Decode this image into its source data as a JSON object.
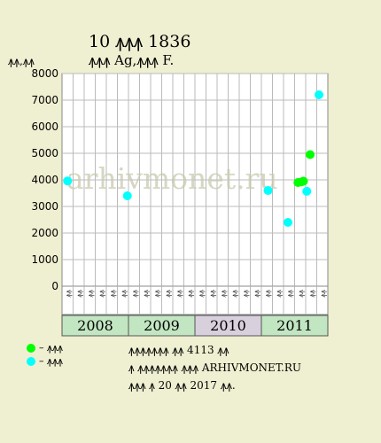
{
  "header": {
    "title": "10 ꙟꙟꙟ 1836",
    "subtitle": "ꙟꙟꙟ Ag,ꙟꙟꙟ F.",
    "ylabel": "ꙟꙟ,ꙟꙟ"
  },
  "watermark": "arhivmonet.ru",
  "chart_data": {
    "type": "scatter",
    "ylim": [
      0,
      8000
    ],
    "yticks": [
      0,
      1000,
      2000,
      3000,
      4000,
      5000,
      6000,
      7000,
      8000
    ],
    "grid": true,
    "x_sublabels": [
      "ꙟꙟ",
      "ꙟꙟ",
      "ꙟꙟ",
      "ꙟꙟ",
      "ꙟꙟ",
      "ꙟꙟ",
      "ꙟꙟ",
      "ꙟꙟ",
      "ꙟꙟ",
      "ꙟꙟ",
      "ꙟꙟ",
      "ꙟꙟ",
      "ꙟꙟ",
      "ꙟꙟ",
      "ꙟꙟ",
      "ꙟꙟ",
      "ꙟꙟ",
      "ꙟꙟ",
      "ꙟꙟ",
      "ꙟꙟ",
      "ꙟꙟ",
      "ꙟꙟ",
      "ꙟꙟ",
      "ꙟꙟ"
    ],
    "years": [
      {
        "label": "2008",
        "color": "#c2e6c2"
      },
      {
        "label": "2009",
        "color": "#c2e6c2"
      },
      {
        "label": "2010",
        "color": "#d8d0dc"
      },
      {
        "label": "2011",
        "color": "#c2e6c2"
      }
    ],
    "series": [
      {
        "name": "ꙟꙟꙟ",
        "color": "#00ff00",
        "points": [
          {
            "x": 21.3,
            "y": 3900
          },
          {
            "x": 21.6,
            "y": 3920
          },
          {
            "x": 21.8,
            "y": 3950
          },
          {
            "x": 22.4,
            "y": 4950
          }
        ]
      },
      {
        "name": "ꙟꙟꙟ",
        "color": "#00ffff",
        "points": [
          {
            "x": 0.5,
            "y": 3960
          },
          {
            "x": 5.9,
            "y": 3400
          },
          {
            "x": 18.6,
            "y": 3600
          },
          {
            "x": 20.4,
            "y": 2400
          },
          {
            "x": 22.1,
            "y": 3570
          },
          {
            "x": 23.2,
            "y": 7200
          }
        ]
      }
    ]
  },
  "legend": [
    {
      "label": "– ꙟꙟꙟ",
      "color": "#00ff00"
    },
    {
      "label": "– ꙟꙟꙟ",
      "color": "#00ffff"
    }
  ],
  "notes": [
    "ꙟꙟꙟꙟꙟꙟꙟ ꙟꙟ 4113 ꙟꙟ",
    "ꙟ ꙟꙟꙟꙟꙟꙟꙟ ꙟꙟꙟ ARHIVMONET.RU",
    "ꙟꙟꙟ ꙟ 20 ꙟꙟ 2017 ꙟꙟ."
  ]
}
